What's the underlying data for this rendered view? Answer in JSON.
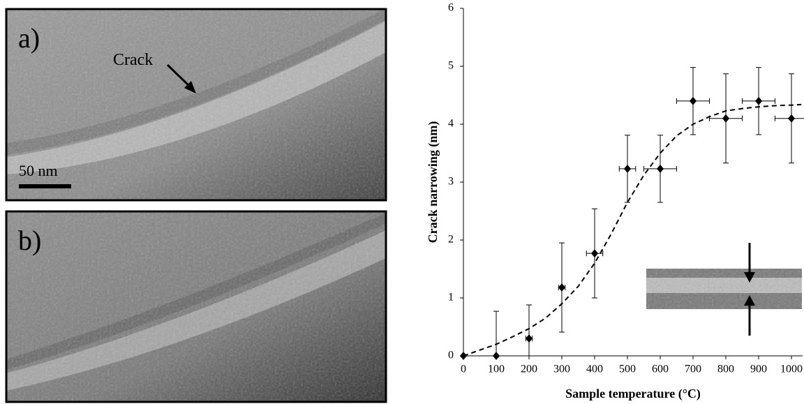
{
  "panels": {
    "a": {
      "label": "a)",
      "annotation": "Crack",
      "scale_bar": "50 nm"
    },
    "b": {
      "label": "b)"
    }
  },
  "chart_data": {
    "type": "scatter",
    "x_label": "Sample temperature (°C)",
    "y_label": "Crack narrowing (nm)",
    "x": [
      0,
      100,
      200,
      300,
      400,
      500,
      600,
      700,
      800,
      900,
      1000
    ],
    "series": [
      {
        "color": "#000000",
        "values": [
          0,
          0,
          0.3,
          1.18,
          1.77,
          3.23,
          3.23,
          4.4,
          4.1,
          4.4,
          4.1
        ],
        "errors": [
          0,
          0.77,
          0.58,
          0.77,
          0.77,
          0.58,
          0.58,
          0.58,
          0.77,
          0.58,
          0.77
        ],
        "xerrors": [
          0,
          0,
          10,
          10,
          25,
          25,
          50,
          50,
          50,
          50,
          50
        ]
      }
    ],
    "fit": {
      "color": "#000000",
      "x": [
        0,
        50,
        100,
        150,
        200,
        250,
        300,
        350,
        400,
        450,
        500,
        550,
        600,
        650,
        700,
        750,
        800,
        850,
        900,
        950,
        1000,
        1030
      ],
      "values": [
        0,
        0.1,
        0.2,
        0.33,
        0.47,
        0.65,
        0.9,
        1.2,
        1.6,
        2.1,
        2.65,
        3.12,
        3.5,
        3.8,
        4.0,
        4.13,
        4.23,
        4.27,
        4.3,
        4.32,
        4.33,
        4.34
      ]
    },
    "xlim": [
      0,
      1034
    ],
    "ylim": [
      0,
      6
    ],
    "xticks": [
      0,
      100,
      200,
      300,
      400,
      500,
      600,
      700,
      800,
      900,
      1000
    ],
    "yticks": [
      0,
      1,
      2,
      3,
      4,
      5,
      6
    ]
  }
}
